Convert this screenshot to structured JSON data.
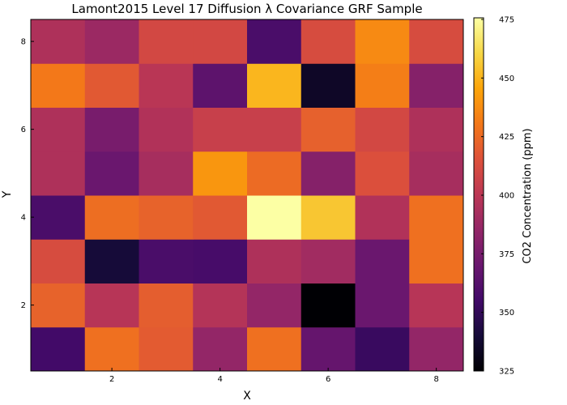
{
  "chart_data": {
    "type": "heatmap",
    "title": "Lamont2015 Level 17 Diffusion λ Covariance GRF Sample",
    "xlabel": "X",
    "ylabel": "Y",
    "colorbar_label": "CO2 Concentration (ppm)",
    "colormap": "inferno",
    "x": [
      1,
      2,
      3,
      4,
      5,
      6,
      7,
      8
    ],
    "y": [
      1,
      2,
      3,
      4,
      5,
      6,
      7,
      8
    ],
    "xlim": [
      0.5,
      8.5
    ],
    "ylim": [
      0.5,
      8.5
    ],
    "xticks": [
      2,
      4,
      6,
      8
    ],
    "yticks": [
      2,
      4,
      6,
      8
    ],
    "clim": [
      325,
      475
    ],
    "cbar_ticks": [
      325,
      350,
      375,
      400,
      425,
      450,
      475
    ],
    "grid": false,
    "z": [
      [
        355,
        427,
        419,
        385,
        427,
        368,
        352,
        385
      ],
      [
        422,
        398,
        420,
        397,
        385,
        325,
        370,
        398
      ],
      [
        412,
        340,
        358,
        357,
        395,
        390,
        370,
        427
      ],
      [
        358,
        426,
        422,
        418,
        475,
        455,
        396,
        427
      ],
      [
        395,
        370,
        392,
        440,
        425,
        380,
        414,
        392
      ],
      [
        395,
        375,
        396,
        405,
        405,
        421,
        410,
        395
      ],
      [
        430,
        418,
        399,
        365,
        450,
        335,
        432,
        380
      ],
      [
        395,
        388,
        410,
        410,
        358,
        412,
        436,
        412
      ]
    ]
  }
}
